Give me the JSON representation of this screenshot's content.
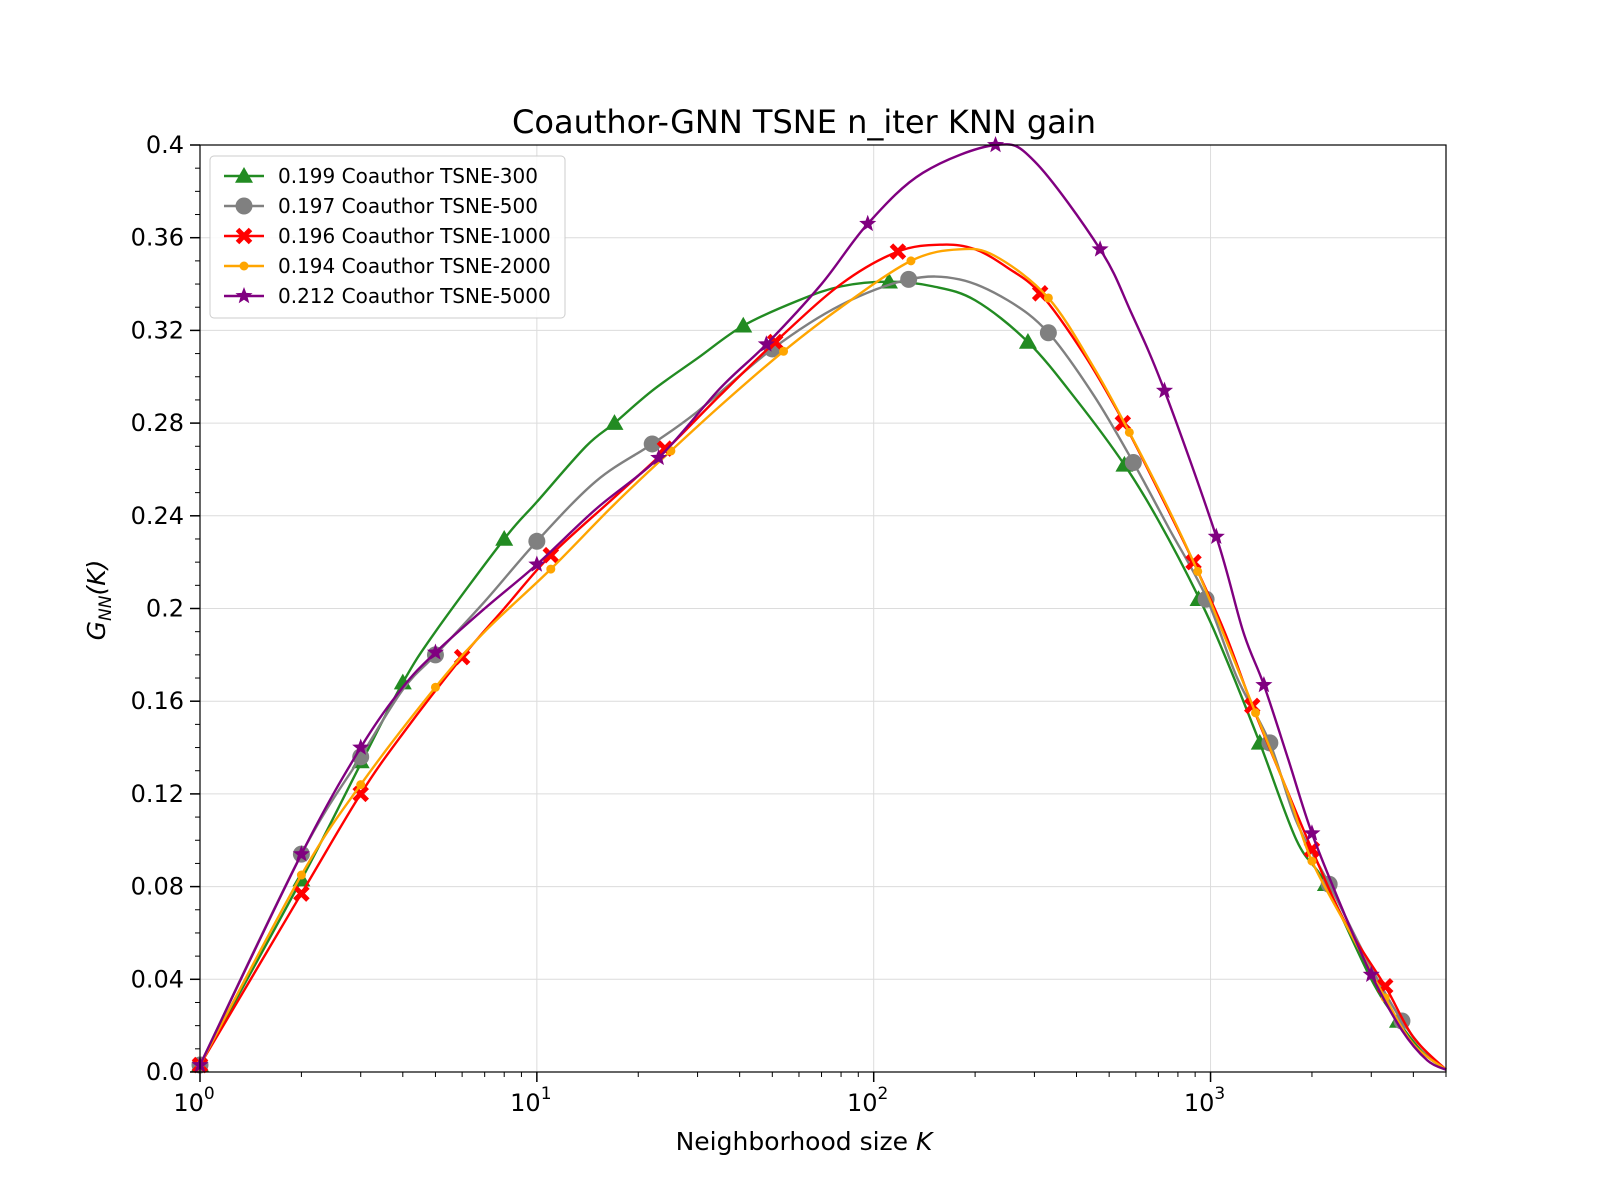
{
  "chart_data": {
    "type": "line",
    "title": "Coauthor-GNN TSNE n_iter KNN gain",
    "xlabel_prefix": "Neighborhood size ",
    "xlabel_var": "K",
    "ylabel_main": "G",
    "ylabel_sub": "NN",
    "ylabel_rest": "(K)",
    "xscale": "log",
    "xlim": [
      1,
      5000
    ],
    "ylim": [
      0.0,
      0.4
    ],
    "x_ticks": [
      {
        "value": 1,
        "base": "10",
        "exp": "0"
      },
      {
        "value": 10,
        "base": "10",
        "exp": "1"
      },
      {
        "value": 100,
        "base": "10",
        "exp": "2"
      },
      {
        "value": 1000,
        "base": "10",
        "exp": "3"
      }
    ],
    "y_ticks": [
      {
        "value": 0.0,
        "label": "0.0"
      },
      {
        "value": 0.04,
        "label": "0.04"
      },
      {
        "value": 0.08,
        "label": "0.08"
      },
      {
        "value": 0.12,
        "label": "0.12"
      },
      {
        "value": 0.16,
        "label": "0.16"
      },
      {
        "value": 0.2,
        "label": "0.2"
      },
      {
        "value": 0.24,
        "label": "0.24"
      },
      {
        "value": 0.28,
        "label": "0.28"
      },
      {
        "value": 0.32,
        "label": "0.32"
      },
      {
        "value": 0.36,
        "label": "0.36"
      },
      {
        "value": 0.4,
        "label": "0.4"
      }
    ],
    "grid": true,
    "legend_position": "top-left",
    "series": [
      {
        "name": "0.199 Coauthor TSNE-300",
        "color": "#228B22",
        "marker": "triangle",
        "line": [
          [
            1,
            0.003
          ],
          [
            2,
            0.083
          ],
          [
            3,
            0.133
          ],
          [
            4,
            0.168
          ],
          [
            5,
            0.19
          ],
          [
            8,
            0.23
          ],
          [
            10,
            0.246
          ],
          [
            14,
            0.27
          ],
          [
            17,
            0.28
          ],
          [
            22,
            0.294
          ],
          [
            30,
            0.308
          ],
          [
            41,
            0.322
          ],
          [
            60,
            0.333
          ],
          [
            80,
            0.339
          ],
          [
            111,
            0.341
          ],
          [
            150,
            0.339
          ],
          [
            200,
            0.333
          ],
          [
            287,
            0.315
          ],
          [
            400,
            0.29
          ],
          [
            555,
            0.262
          ],
          [
            700,
            0.238
          ],
          [
            921,
            0.205
          ],
          [
            1100,
            0.18
          ],
          [
            1400,
            0.142
          ],
          [
            1800,
            0.1
          ],
          [
            2200,
            0.081
          ],
          [
            3000,
            0.04
          ],
          [
            3600,
            0.022
          ],
          [
            4300,
            0.008
          ],
          [
            5000,
            0.001
          ]
        ],
        "markers": [
          [
            1,
            0.003
          ],
          [
            2,
            0.083
          ],
          [
            3,
            0.134
          ],
          [
            4,
            0.168
          ],
          [
            8,
            0.23
          ],
          [
            17,
            0.28
          ],
          [
            41,
            0.322
          ],
          [
            111,
            0.341
          ],
          [
            287,
            0.315
          ],
          [
            555,
            0.262
          ],
          [
            921,
            0.204
          ],
          [
            1400,
            0.142
          ],
          [
            2200,
            0.081
          ],
          [
            3600,
            0.022
          ]
        ]
      },
      {
        "name": "0.197 Coauthor TSNE-500",
        "color": "#808080",
        "marker": "circle",
        "line": [
          [
            1,
            0.003
          ],
          [
            2,
            0.094
          ],
          [
            3,
            0.136
          ],
          [
            4,
            0.165
          ],
          [
            5,
            0.18
          ],
          [
            7,
            0.203
          ],
          [
            10,
            0.229
          ],
          [
            15,
            0.255
          ],
          [
            22,
            0.271
          ],
          [
            30,
            0.285
          ],
          [
            50,
            0.312
          ],
          [
            80,
            0.331
          ],
          [
            127,
            0.342
          ],
          [
            180,
            0.342
          ],
          [
            250,
            0.333
          ],
          [
            330,
            0.319
          ],
          [
            450,
            0.292
          ],
          [
            590,
            0.263
          ],
          [
            750,
            0.235
          ],
          [
            970,
            0.205
          ],
          [
            1200,
            0.17
          ],
          [
            1500,
            0.142
          ],
          [
            1800,
            0.108
          ],
          [
            2250,
            0.081
          ],
          [
            3000,
            0.045
          ],
          [
            3700,
            0.022
          ],
          [
            4400,
            0.008
          ],
          [
            5000,
            0.001
          ]
        ],
        "markers": [
          [
            1,
            0.003
          ],
          [
            2,
            0.094
          ],
          [
            3,
            0.136
          ],
          [
            5,
            0.18
          ],
          [
            10,
            0.229
          ],
          [
            22,
            0.271
          ],
          [
            50,
            0.312
          ],
          [
            127,
            0.342
          ],
          [
            330,
            0.319
          ],
          [
            590,
            0.263
          ],
          [
            970,
            0.204
          ],
          [
            1500,
            0.142
          ],
          [
            2250,
            0.081
          ],
          [
            3700,
            0.022
          ]
        ]
      },
      {
        "name": "0.196 Coauthor TSNE-1000",
        "color": "#FF0000",
        "marker": "x",
        "line": [
          [
            1,
            0.003
          ],
          [
            2,
            0.077
          ],
          [
            3,
            0.12
          ],
          [
            4,
            0.146
          ],
          [
            6,
            0.179
          ],
          [
            8,
            0.2
          ],
          [
            11,
            0.223
          ],
          [
            17,
            0.248
          ],
          [
            24,
            0.268
          ],
          [
            35,
            0.292
          ],
          [
            51,
            0.315
          ],
          [
            80,
            0.34
          ],
          [
            118,
            0.354
          ],
          [
            160,
            0.357
          ],
          [
            200,
            0.355
          ],
          [
            250,
            0.347
          ],
          [
            312,
            0.336
          ],
          [
            420,
            0.31
          ],
          [
            549,
            0.281
          ],
          [
            700,
            0.251
          ],
          [
            890,
            0.22
          ],
          [
            1100,
            0.19
          ],
          [
            1330,
            0.158
          ],
          [
            1650,
            0.125
          ],
          [
            2000,
            0.096
          ],
          [
            2500,
            0.065
          ],
          [
            3300,
            0.037
          ],
          [
            4000,
            0.015
          ],
          [
            5000,
            0.001
          ]
        ],
        "markers": [
          [
            1,
            0.003
          ],
          [
            2,
            0.077
          ],
          [
            3,
            0.12
          ],
          [
            6,
            0.179
          ],
          [
            11,
            0.223
          ],
          [
            24,
            0.269
          ],
          [
            51,
            0.315
          ],
          [
            118,
            0.354
          ],
          [
            312,
            0.336
          ],
          [
            549,
            0.28
          ],
          [
            890,
            0.22
          ],
          [
            1330,
            0.158
          ],
          [
            2000,
            0.096
          ],
          [
            3300,
            0.037
          ]
        ]
      },
      {
        "name": "0.194 Coauthor TSNE-2000",
        "color": "#FFA500",
        "marker": "point",
        "line": [
          [
            1,
            0.003
          ],
          [
            2,
            0.085
          ],
          [
            3,
            0.124
          ],
          [
            5,
            0.166
          ],
          [
            7,
            0.19
          ],
          [
            11,
            0.217
          ],
          [
            17,
            0.245
          ],
          [
            25,
            0.268
          ],
          [
            36,
            0.289
          ],
          [
            54,
            0.311
          ],
          [
            80,
            0.33
          ],
          [
            129,
            0.35
          ],
          [
            180,
            0.355
          ],
          [
            230,
            0.352
          ],
          [
            330,
            0.334
          ],
          [
            450,
            0.304
          ],
          [
            574,
            0.276
          ],
          [
            750,
            0.243
          ],
          [
            916,
            0.216
          ],
          [
            1100,
            0.188
          ],
          [
            1360,
            0.155
          ],
          [
            1700,
            0.12
          ],
          [
            2000,
            0.091
          ],
          [
            2600,
            0.06
          ],
          [
            3300,
            0.032
          ],
          [
            4000,
            0.012
          ],
          [
            5000,
            0.001
          ]
        ],
        "markers": [
          [
            1,
            0.003
          ],
          [
            2,
            0.085
          ],
          [
            3,
            0.124
          ],
          [
            5,
            0.166
          ],
          [
            11,
            0.217
          ],
          [
            25,
            0.268
          ],
          [
            54,
            0.311
          ],
          [
            129,
            0.35
          ],
          [
            330,
            0.334
          ],
          [
            574,
            0.276
          ],
          [
            916,
            0.216
          ],
          [
            1360,
            0.155
          ],
          [
            2000,
            0.091
          ],
          [
            3300,
            0.032
          ]
        ]
      },
      {
        "name": "0.212 Coauthor TSNE-5000",
        "color": "#800080",
        "marker": "star",
        "line": [
          [
            1,
            0.003
          ],
          [
            2,
            0.094
          ],
          [
            3,
            0.14
          ],
          [
            4,
            0.166
          ],
          [
            5,
            0.181
          ],
          [
            7,
            0.2
          ],
          [
            10,
            0.219
          ],
          [
            15,
            0.243
          ],
          [
            23,
            0.265
          ],
          [
            35,
            0.295
          ],
          [
            48,
            0.314
          ],
          [
            70,
            0.34
          ],
          [
            96,
            0.366
          ],
          [
            140,
            0.388
          ],
          [
            230,
            0.4
          ],
          [
            300,
            0.393
          ],
          [
            470,
            0.355
          ],
          [
            580,
            0.328
          ],
          [
            730,
            0.294
          ],
          [
            1040,
            0.231
          ],
          [
            1250,
            0.19
          ],
          [
            1440,
            0.167
          ],
          [
            1700,
            0.135
          ],
          [
            2000,
            0.103
          ],
          [
            2500,
            0.068
          ],
          [
            3000,
            0.042
          ],
          [
            3700,
            0.018
          ],
          [
            4400,
            0.005
          ],
          [
            5000,
            0.001
          ]
        ],
        "markers": [
          [
            1,
            0.003
          ],
          [
            2,
            0.094
          ],
          [
            3,
            0.14
          ],
          [
            5,
            0.181
          ],
          [
            10,
            0.219
          ],
          [
            23,
            0.265
          ],
          [
            48,
            0.314
          ],
          [
            96,
            0.366
          ],
          [
            230,
            0.4
          ],
          [
            470,
            0.355
          ],
          [
            730,
            0.294
          ],
          [
            1040,
            0.231
          ],
          [
            1440,
            0.167
          ],
          [
            2000,
            0.103
          ],
          [
            3000,
            0.042
          ]
        ]
      }
    ]
  }
}
